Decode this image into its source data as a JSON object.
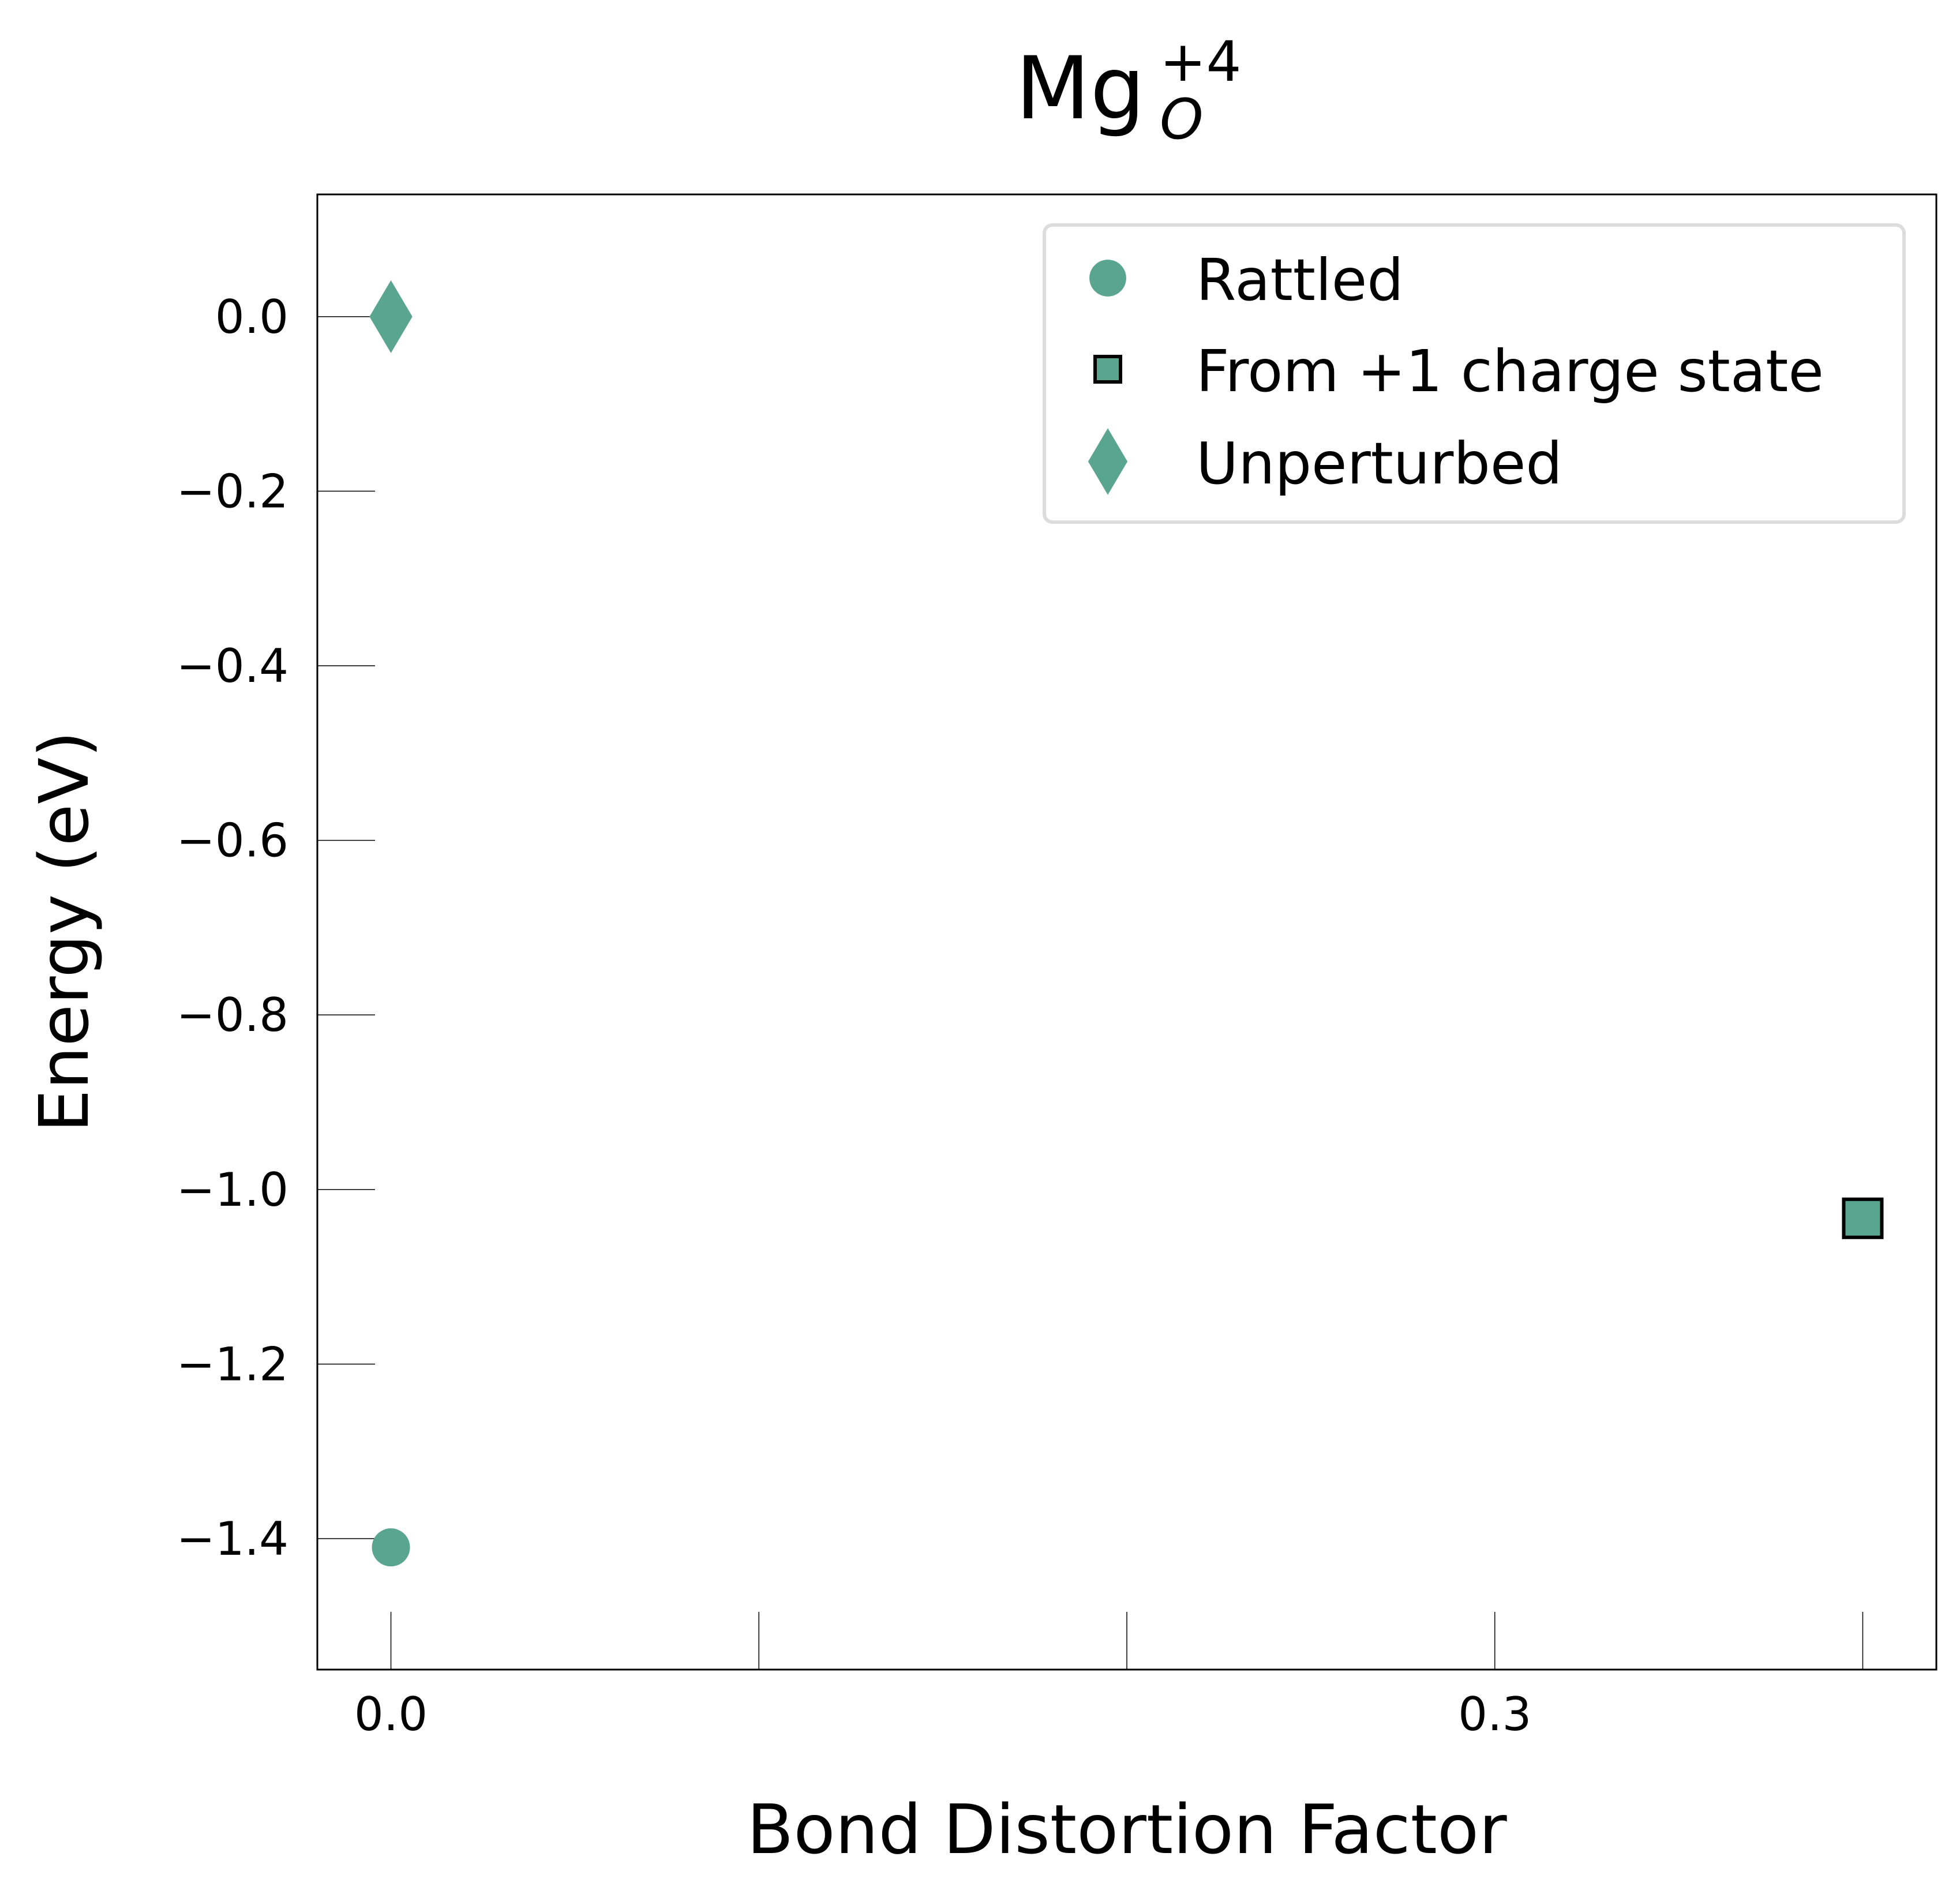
{
  "chart_data": {
    "type": "scatter",
    "title": {
      "base": "Mg",
      "subscript": "O",
      "superscript": "+4"
    },
    "xlabel": "Bond Distortion Factor",
    "ylabel": "Energy (eV)",
    "xlim": [
      -0.02,
      0.42
    ],
    "ylim": [
      -1.55,
      0.14
    ],
    "x_ticks": [
      0.0,
      0.1,
      0.2,
      0.3,
      0.4
    ],
    "x_tick_labels": [
      "0.0",
      "",
      "",
      "0.3",
      ""
    ],
    "y_ticks": [
      0.0,
      -0.2,
      -0.4,
      -0.6,
      -0.8,
      -1.0,
      -1.2,
      -1.4
    ],
    "y_tick_labels": [
      "0.0",
      "−0.2",
      "−0.4",
      "−0.6",
      "−0.8",
      "−1.0",
      "−1.2",
      "−1.4"
    ],
    "grid": false,
    "legend_position": "top-right",
    "color": "#5aa58f",
    "edge_color": "#000000",
    "series": [
      {
        "name": "Rattled",
        "marker": "circle",
        "points": [
          {
            "x": 0.0,
            "y": -1.41
          }
        ]
      },
      {
        "name": "From +1 charge state",
        "marker": "square",
        "points": [
          {
            "x": 0.4,
            "y": -1.033
          }
        ]
      },
      {
        "name": "Unperturbed",
        "marker": "diamond",
        "points": [
          {
            "x": 0.0,
            "y": 0.0
          }
        ]
      }
    ]
  }
}
